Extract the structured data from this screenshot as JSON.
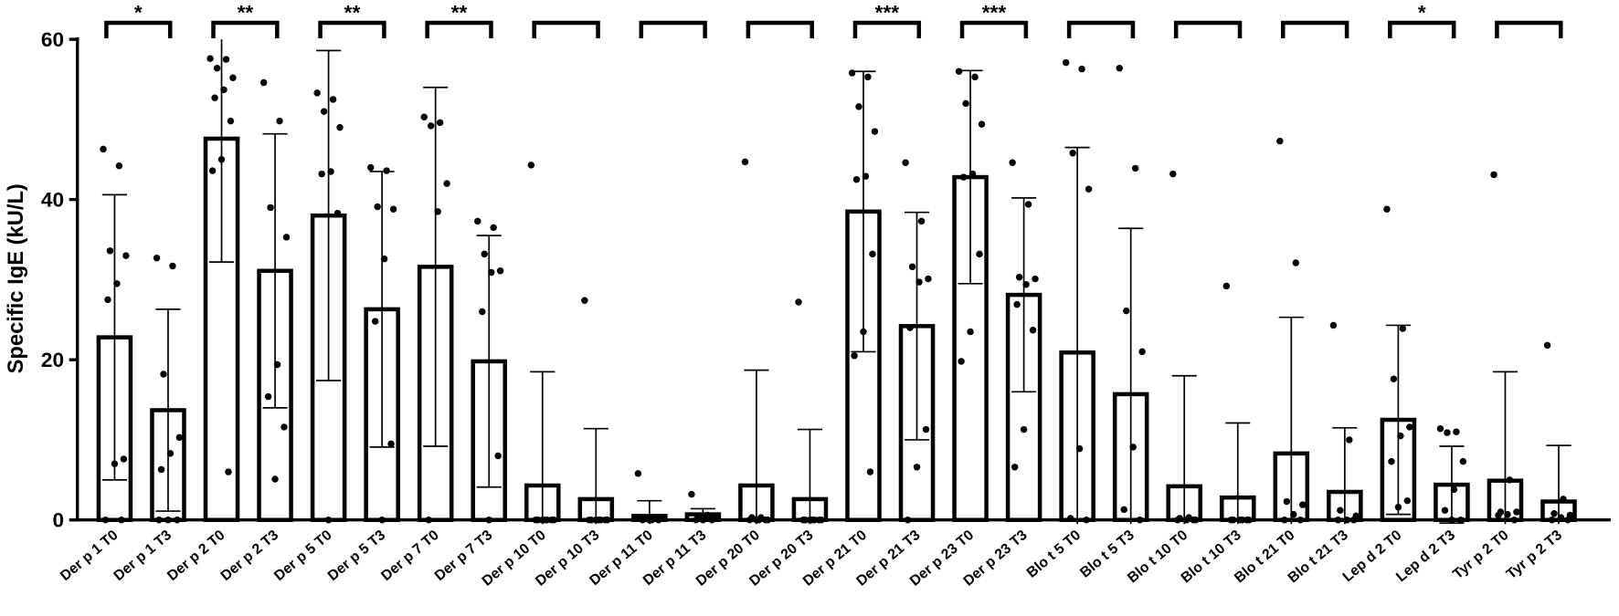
{
  "chart_data": {
    "type": "bar",
    "ylabel": "Specific IgE (kU/L)",
    "categories": [
      "Der p 1 T0",
      "Der p 1 T3",
      "Der p 2 T0",
      "Der p 2 T3",
      "Der p 5 T0",
      "Der p 5 T3",
      "Der p 7 T0",
      "Der p 7 T3",
      "Der p 10 T0",
      "Der p 10 T3",
      "Der p 11 T0",
      "Der p 11 T3",
      "Der p 20 T0",
      "Der p 20 T3",
      "Der p 21 T0",
      "Der p 21 T3",
      "Der p 23 T0",
      "Der p 23 T3",
      "Blo t 5 T0",
      "Blo t 5 T3",
      "Blo t 10 T0",
      "Blo t 10 T3",
      "Blo t 21 T0",
      "Blo t 21 T3",
      "Lep d 2 T0",
      "Lep d 2 T3",
      "Tyr p 2 T0",
      "Tyr p 2 T3"
    ],
    "values": [
      22.8,
      13.7,
      47.6,
      31.1,
      38.0,
      26.3,
      31.6,
      19.8,
      4.3,
      2.6,
      0.5,
      0.7,
      4.3,
      2.6,
      38.5,
      24.2,
      42.8,
      28.1,
      20.9,
      15.7,
      4.2,
      2.8,
      8.3,
      3.5,
      12.5,
      4.4,
      4.9,
      2.3
    ],
    "errors": [
      17.8,
      12.6,
      15.4,
      17.1,
      20.6,
      17.2,
      22.4,
      15.7,
      14.2,
      8.8,
      1.9,
      0.7,
      14.4,
      8.7,
      17.5,
      14.2,
      13.3,
      12.1,
      25.6,
      20.7,
      13.8,
      9.3,
      17.0,
      8.0,
      11.8,
      4.8,
      13.6,
      7.0
    ],
    "points": [
      [
        46.3,
        44.2,
        33.6,
        33,
        29.5,
        27.5,
        7.6,
        7,
        0,
        0
      ],
      [
        32.7,
        31.7,
        18.2,
        10.3,
        8.3,
        6.3,
        0,
        0,
        0
      ],
      [
        57.6,
        57.5,
        56.4,
        55.2,
        53.7,
        52.7,
        49.8,
        45,
        43.6,
        6
      ],
      [
        54.6,
        49.8,
        39,
        35.3,
        19.4,
        15.4,
        11.6,
        5.1
      ],
      [
        53.3,
        52.5,
        51,
        49,
        43.5,
        43.2,
        38.3,
        0
      ],
      [
        44,
        43.6,
        39.1,
        38.8,
        32.6,
        24.8,
        9.5,
        0
      ],
      [
        50.3,
        49.6,
        49.2,
        42,
        38.5,
        0
      ],
      [
        37.3,
        36.5,
        33.2,
        31.1,
        30.9,
        26,
        8,
        0
      ],
      [
        44.3,
        0,
        0,
        0,
        0,
        0,
        0,
        0
      ],
      [
        27.4,
        0,
        0,
        0,
        0,
        0,
        0,
        0
      ],
      [
        5.8,
        0.3,
        0.3,
        0.3,
        0,
        0,
        0,
        0
      ],
      [
        3.2,
        0.6,
        0.5,
        0.4,
        0.3,
        0,
        0,
        0
      ],
      [
        44.7,
        0.3,
        0.3,
        0,
        0,
        0,
        0,
        0
      ],
      [
        27.2,
        0,
        0,
        0,
        0,
        0,
        0,
        0
      ],
      [
        55.8,
        55.3,
        51.6,
        48.5,
        42.9,
        42.5,
        33.2,
        23.5,
        20.5,
        6
      ],
      [
        44.6,
        37.3,
        31.6,
        30.1,
        29.7,
        24,
        11.3,
        6.6,
        0
      ],
      [
        56,
        55.3,
        52,
        49.4,
        43.2,
        42.8,
        33.2,
        23.5,
        19.8
      ],
      [
        44.6,
        39.4,
        30.3,
        30.1,
        29.4,
        26.9,
        23.7,
        11.3,
        6.6
      ],
      [
        57.1,
        56.3,
        45.8,
        41.3,
        8.9,
        0.2,
        0
      ],
      [
        56.4,
        43.9,
        26.1,
        21,
        9.1,
        1.3,
        0
      ],
      [
        43.2,
        0.3,
        0.2,
        0,
        0,
        0,
        0
      ],
      [
        29.2,
        0,
        0,
        0,
        0,
        0,
        0
      ],
      [
        47.3,
        32.1,
        2.3,
        1.9,
        0.7,
        0,
        0
      ],
      [
        24.3,
        10,
        1.2,
        0.5,
        0,
        0,
        0
      ],
      [
        38.8,
        23.9,
        17.6,
        11.6,
        10.5,
        7.3,
        2.4,
        1.6
      ],
      [
        11.4,
        11,
        10.9,
        7.3,
        3.8,
        1.2,
        0,
        0
      ],
      [
        43.1,
        5,
        1,
        1,
        0.7,
        0.6,
        0
      ],
      [
        21.8,
        2.6,
        0.8,
        0.6,
        0.3,
        0,
        0
      ]
    ],
    "significance": [
      "*",
      "**",
      "**",
      "**",
      null,
      null,
      null,
      "***",
      "***",
      null,
      null,
      null,
      "*",
      null
    ],
    "color": "#ffffff",
    "edge_color": "#000000",
    "ylim": [
      0,
      60
    ],
    "yticks": [
      0,
      20,
      40,
      60
    ]
  }
}
